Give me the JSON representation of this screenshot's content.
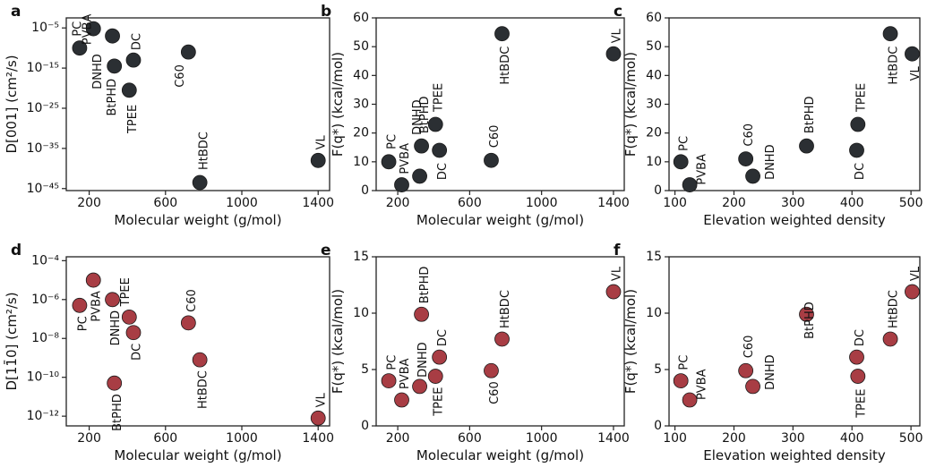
{
  "figure": {
    "colors": {
      "top_row": "#2b2f33",
      "bottom_row": "#a83d44",
      "axis": "#222222"
    }
  },
  "chart_data": [
    {
      "id": "a",
      "type": "scatter",
      "letter": "a",
      "ylabel": "D[001] (cm²/s)",
      "xlabel": "Molecular weight (g/mol)",
      "xscale": "linear",
      "yscale": "log",
      "xlim": [
        80,
        1460
      ],
      "ylim": [
        -45.5,
        -2.5
      ],
      "xticks": [
        200,
        600,
        1000,
        1400
      ],
      "xtick_labels": [
        "200",
        "600",
        "1000",
        "1400"
      ],
      "yticks": [
        -5,
        -15,
        -25,
        -35,
        -45
      ],
      "ytick_labels": [
        "10⁻⁵",
        "10⁻¹⁵",
        "10⁻²⁵",
        "10⁻³⁵",
        "10⁻⁴⁵"
      ],
      "color": "#2b2f33",
      "points": [
        {
          "x": 150,
          "y": -10,
          "label": "PC"
        },
        {
          "x": 222,
          "y": -5.2,
          "label": "PVBA"
        },
        {
          "x": 322,
          "y": -7,
          "label": "DNHD"
        },
        {
          "x": 332,
          "y": -14.5,
          "label": "BtPHD"
        },
        {
          "x": 410,
          "y": -20.5,
          "label": "TPEE"
        },
        {
          "x": 432,
          "y": -13,
          "label": "DC"
        },
        {
          "x": 720,
          "y": -11,
          "label": "C60"
        },
        {
          "x": 780,
          "y": -43.5,
          "label": "HtBDC"
        },
        {
          "x": 1400,
          "y": -38,
          "label": "VL"
        }
      ]
    },
    {
      "id": "b",
      "type": "scatter",
      "letter": "b",
      "ylabel": "F(q*) (kcal/mol)",
      "xlabel": "Molecular weight (g/mol)",
      "xscale": "linear",
      "yscale": "linear",
      "xlim": [
        80,
        1460
      ],
      "ylim": [
        0,
        60
      ],
      "xticks": [
        200,
        600,
        1000,
        1400
      ],
      "xtick_labels": [
        "200",
        "600",
        "1000",
        "1400"
      ],
      "yticks": [
        0,
        10,
        20,
        30,
        40,
        50,
        60
      ],
      "ytick_labels": [
        "0",
        "10",
        "20",
        "30",
        "40",
        "50",
        "60"
      ],
      "color": "#2b2f33",
      "points": [
        {
          "x": 150,
          "y": 10,
          "label": "PC"
        },
        {
          "x": 222,
          "y": 2,
          "label": "PVBA"
        },
        {
          "x": 322,
          "y": 5,
          "label": "DNHD"
        },
        {
          "x": 332,
          "y": 15.5,
          "label": "BtPHD"
        },
        {
          "x": 410,
          "y": 23,
          "label": "TPEE"
        },
        {
          "x": 432,
          "y": 14,
          "label": "DC"
        },
        {
          "x": 720,
          "y": 10.5,
          "label": "C60"
        },
        {
          "x": 780,
          "y": 54.5,
          "label": "HtBDC"
        },
        {
          "x": 1400,
          "y": 47.5,
          "label": "VL"
        }
      ]
    },
    {
      "id": "c",
      "type": "scatter",
      "letter": "c",
      "ylabel": "F(q*) (kcal/mol)",
      "xlabel": "Elevation weighted density",
      "xscale": "linear",
      "yscale": "linear",
      "xlim": [
        90,
        515
      ],
      "ylim": [
        0,
        60
      ],
      "xticks": [
        100,
        200,
        300,
        400,
        500
      ],
      "xtick_labels": [
        "100",
        "200",
        "300",
        "400",
        "500"
      ],
      "yticks": [
        0,
        10,
        20,
        30,
        40,
        50,
        60
      ],
      "ytick_labels": [
        "0",
        "10",
        "20",
        "30",
        "40",
        "50",
        "60"
      ],
      "color": "#2b2f33",
      "points": [
        {
          "x": 110,
          "y": 10,
          "label": "PC"
        },
        {
          "x": 125,
          "y": 2,
          "label": "PVBA"
        },
        {
          "x": 220,
          "y": 11,
          "label": "C60"
        },
        {
          "x": 232,
          "y": 5,
          "label": "DNHD"
        },
        {
          "x": 323,
          "y": 15.5,
          "label": "BtPHD"
        },
        {
          "x": 408,
          "y": 14,
          "label": "DC"
        },
        {
          "x": 410,
          "y": 23,
          "label": "TPEE"
        },
        {
          "x": 465,
          "y": 54.5,
          "label": "HtBDC"
        },
        {
          "x": 502,
          "y": 47.5,
          "label": "VL"
        }
      ]
    },
    {
      "id": "d",
      "type": "scatter",
      "letter": "d",
      "ylabel": "D[11̄0] (cm²/s)",
      "xlabel": "Molecular weight (g/mol)",
      "xscale": "linear",
      "yscale": "log",
      "xlim": [
        80,
        1460
      ],
      "ylim": [
        -12.5,
        -3.8
      ],
      "xticks": [
        200,
        600,
        1000,
        1400
      ],
      "xtick_labels": [
        "200",
        "600",
        "1000",
        "1400"
      ],
      "yticks": [
        -4,
        -6,
        -8,
        -10,
        -12
      ],
      "ytick_labels": [
        "10⁻⁴",
        "10⁻⁶",
        "10⁻⁸",
        "10⁻¹⁰",
        "10⁻¹²"
      ],
      "color": "#a83d44",
      "points": [
        {
          "x": 150,
          "y": -6.3,
          "label": "PC"
        },
        {
          "x": 222,
          "y": -5,
          "label": "PVBA"
        },
        {
          "x": 322,
          "y": -6,
          "label": "DNHD"
        },
        {
          "x": 332,
          "y": -10.3,
          "label": "BtPHD"
        },
        {
          "x": 410,
          "y": -6.9,
          "label": "TPEE"
        },
        {
          "x": 432,
          "y": -7.7,
          "label": "DC"
        },
        {
          "x": 720,
          "y": -7.2,
          "label": "C60"
        },
        {
          "x": 780,
          "y": -9.1,
          "label": "HtBDC"
        },
        {
          "x": 1400,
          "y": -12.1,
          "label": "VL"
        }
      ]
    },
    {
      "id": "e",
      "type": "scatter",
      "letter": "e",
      "ylabel": "F(q*) (kcal/mol)",
      "xlabel": "Molecular weight (g/mol)",
      "xscale": "linear",
      "yscale": "linear",
      "xlim": [
        80,
        1460
      ],
      "ylim": [
        0,
        15
      ],
      "xticks": [
        200,
        600,
        1000,
        1400
      ],
      "xtick_labels": [
        "200",
        "600",
        "1000",
        "1400"
      ],
      "yticks": [
        0,
        5,
        10,
        15
      ],
      "ytick_labels": [
        "0",
        "5",
        "10",
        "15"
      ],
      "color": "#a83d44",
      "points": [
        {
          "x": 150,
          "y": 4,
          "label": "PC"
        },
        {
          "x": 222,
          "y": 2.3,
          "label": "PVBA"
        },
        {
          "x": 322,
          "y": 3.5,
          "label": "DNHD"
        },
        {
          "x": 332,
          "y": 9.9,
          "label": "BtPHD"
        },
        {
          "x": 410,
          "y": 4.4,
          "label": "TPEE"
        },
        {
          "x": 432,
          "y": 6.1,
          "label": "DC"
        },
        {
          "x": 720,
          "y": 4.9,
          "label": "C60"
        },
        {
          "x": 780,
          "y": 7.7,
          "label": "HtBDC"
        },
        {
          "x": 1400,
          "y": 11.9,
          "label": "VL"
        }
      ]
    },
    {
      "id": "f",
      "type": "scatter",
      "letter": "f",
      "ylabel": "F(q*) (kcal/mol)",
      "xlabel": "Elevation weighted density",
      "xscale": "linear",
      "yscale": "linear",
      "xlim": [
        90,
        515
      ],
      "ylim": [
        0,
        15
      ],
      "xticks": [
        100,
        200,
        300,
        400,
        500
      ],
      "xtick_labels": [
        "100",
        "200",
        "300",
        "400",
        "500"
      ],
      "yticks": [
        0,
        5,
        10,
        15
      ],
      "ytick_labels": [
        "0",
        "5",
        "10",
        "15"
      ],
      "color": "#a83d44",
      "points": [
        {
          "x": 110,
          "y": 4,
          "label": "PC"
        },
        {
          "x": 125,
          "y": 2.3,
          "label": "PVBA"
        },
        {
          "x": 220,
          "y": 4.9,
          "label": "C60"
        },
        {
          "x": 232,
          "y": 3.5,
          "label": "DNHD"
        },
        {
          "x": 323,
          "y": 9.9,
          "label": "BtPHD"
        },
        {
          "x": 408,
          "y": 6.1,
          "label": "DC"
        },
        {
          "x": 410,
          "y": 4.4,
          "label": "TPEE"
        },
        {
          "x": 465,
          "y": 7.7,
          "label": "HtBDC"
        },
        {
          "x": 502,
          "y": 11.9,
          "label": "VL"
        }
      ]
    }
  ]
}
